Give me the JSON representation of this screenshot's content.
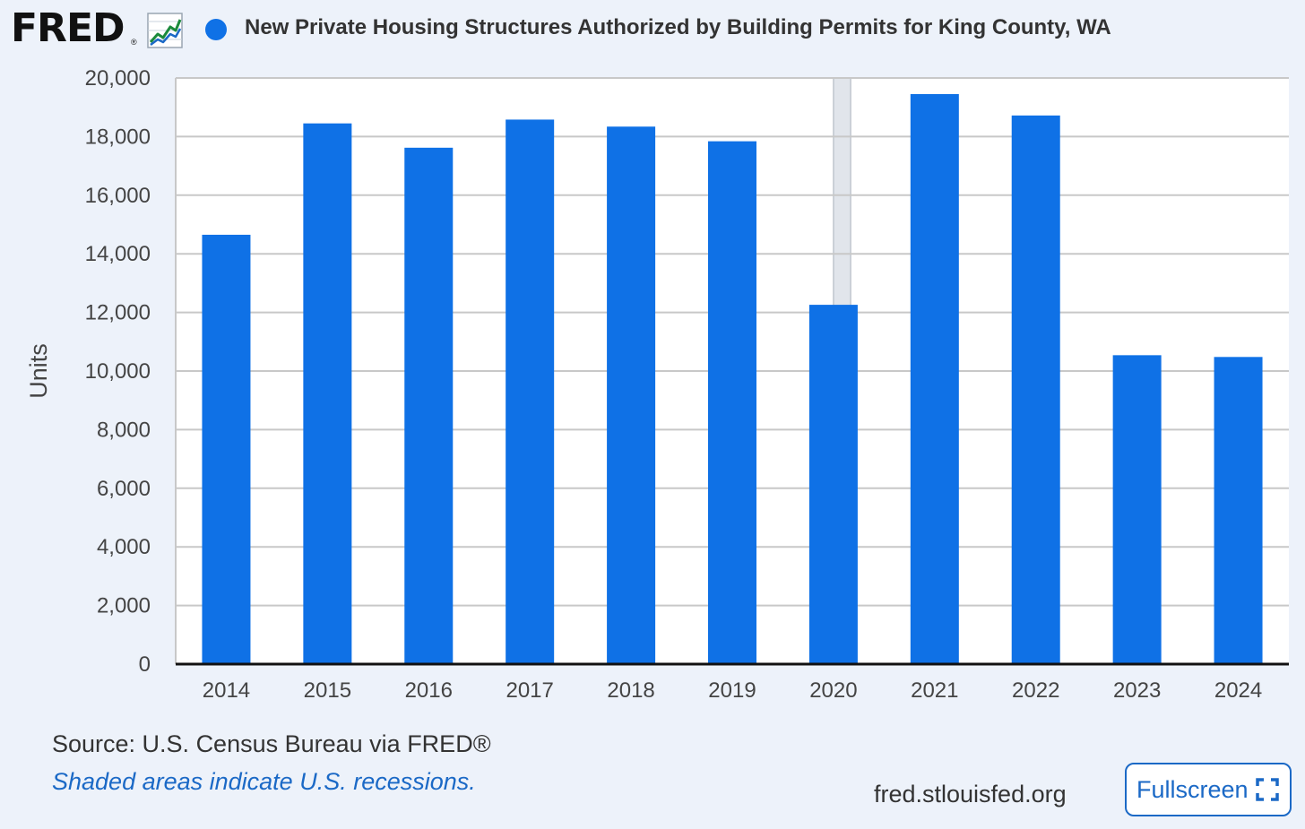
{
  "header": {
    "logo_text": "FRED",
    "logo_mark": "®",
    "logo_icon": "line-chart-icon",
    "series_title": "New Private Housing Structures Authorized by Building Permits for King County, WA"
  },
  "colors": {
    "bar": "#0f71e6",
    "background": "#edf2fa",
    "plot_background": "#ffffff",
    "gridline": "#c8c8c8",
    "recession_shade": "#e1e5eb",
    "link": "#1b69c6"
  },
  "chart_data": {
    "type": "bar",
    "title": "New Private Housing Structures Authorized by Building Permits for King County, WA",
    "ylabel": "Units",
    "xlabel": "",
    "categories": [
      "2014",
      "2015",
      "2016",
      "2017",
      "2018",
      "2019",
      "2020",
      "2021",
      "2022",
      "2023",
      "2024"
    ],
    "values": [
      14650,
      18450,
      17620,
      18580,
      18340,
      17840,
      12260,
      19450,
      18720,
      10540,
      10480
    ],
    "ylim": [
      0,
      20000
    ],
    "yticks": [
      0,
      2000,
      4000,
      6000,
      8000,
      10000,
      12000,
      14000,
      16000,
      18000,
      20000
    ],
    "ytick_labels": [
      "0",
      "2,000",
      "4,000",
      "6,000",
      "8,000",
      "10,000",
      "12,000",
      "14,000",
      "16,000",
      "18,000",
      "20,000"
    ],
    "grid": true,
    "recessions": [
      {
        "start": 2020.0,
        "end": 2020.17
      }
    ]
  },
  "footer": {
    "source": "Source: U.S. Census Bureau via FRED®",
    "recession_note": "Shaded areas indicate U.S. recessions.",
    "site": "fred.stlouisfed.org",
    "fullscreen_label": "Fullscreen",
    "fullscreen_icon": "expand-icon"
  }
}
